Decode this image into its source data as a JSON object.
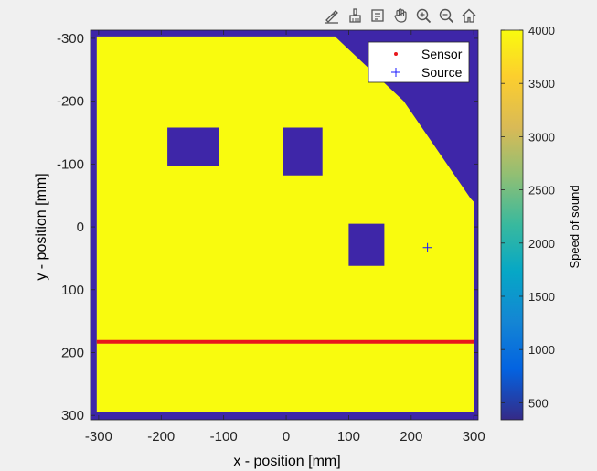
{
  "toolbar": {
    "icons": [
      "edit-plot-icon",
      "brush-icon",
      "data-tips-icon",
      "pan-hand-icon",
      "zoom-in-icon",
      "zoom-out-icon",
      "home-icon"
    ]
  },
  "colors": {
    "high": "#f9fb0e",
    "low": "#3e26a8",
    "sensor": "#e8171c",
    "source": "#1a1aff"
  },
  "chart_data": {
    "type": "heatmap",
    "title": "",
    "xlabel": "x - position [mm]",
    "ylabel": "y - position [mm]",
    "xlim": [
      -313,
      307
    ],
    "ylim": [
      -313,
      307
    ],
    "y_reversed": true,
    "x_ticks": [
      -300,
      -200,
      -100,
      0,
      100,
      200,
      300
    ],
    "x_tick_labels": [
      "-300",
      "-200",
      "-100",
      "0",
      "100",
      "200",
      "300"
    ],
    "y_ticks": [
      -300,
      -200,
      -100,
      0,
      100,
      200,
      300
    ],
    "y_tick_labels": [
      "-300",
      "-200",
      "-100",
      "0",
      "100",
      "200",
      "300"
    ],
    "colorbar": {
      "label": "Speed of sound",
      "range": [
        340,
        4000
      ],
      "ticks": [
        500,
        1000,
        1500,
        2000,
        2500,
        3000,
        3500,
        4000
      ],
      "tick_labels": [
        "500",
        "1000",
        "1500",
        "2000",
        "2500",
        "3000",
        "3500",
        "4000"
      ],
      "colormap": "parula"
    },
    "regions": [
      {
        "name": "background",
        "speed": 340,
        "polygon": [
          [
            -313,
            -313
          ],
          [
            307,
            -313
          ],
          [
            307,
            307
          ],
          [
            -313,
            307
          ]
        ]
      },
      {
        "name": "medium",
        "speed": 4000,
        "polygon": [
          [
            -303,
            -303
          ],
          [
            78,
            -303
          ],
          [
            188,
            -200
          ],
          [
            295,
            -45
          ],
          [
            300,
            -40
          ],
          [
            300,
            295
          ],
          [
            -303,
            295
          ]
        ]
      },
      {
        "name": "inclusion-1",
        "speed": 340,
        "polygon": [
          [
            -190,
            -158
          ],
          [
            -108,
            -158
          ],
          [
            -108,
            -97
          ],
          [
            -190,
            -97
          ]
        ]
      },
      {
        "name": "inclusion-2",
        "speed": 340,
        "polygon": [
          [
            -5,
            -158
          ],
          [
            58,
            -158
          ],
          [
            58,
            -82
          ],
          [
            -5,
            -82
          ]
        ]
      },
      {
        "name": "inclusion-3",
        "speed": 340,
        "polygon": [
          [
            100,
            -5
          ],
          [
            157,
            -5
          ],
          [
            157,
            62
          ],
          [
            100,
            62
          ]
        ]
      }
    ],
    "sensor": {
      "x_start": -303,
      "x_end": 300,
      "y": 183
    },
    "source": {
      "x": 226,
      "y": 33
    },
    "legend": {
      "position": "top-right",
      "entries": [
        {
          "label": "Sensor",
          "marker": "dot"
        },
        {
          "label": "Source",
          "marker": "plus"
        }
      ]
    }
  }
}
